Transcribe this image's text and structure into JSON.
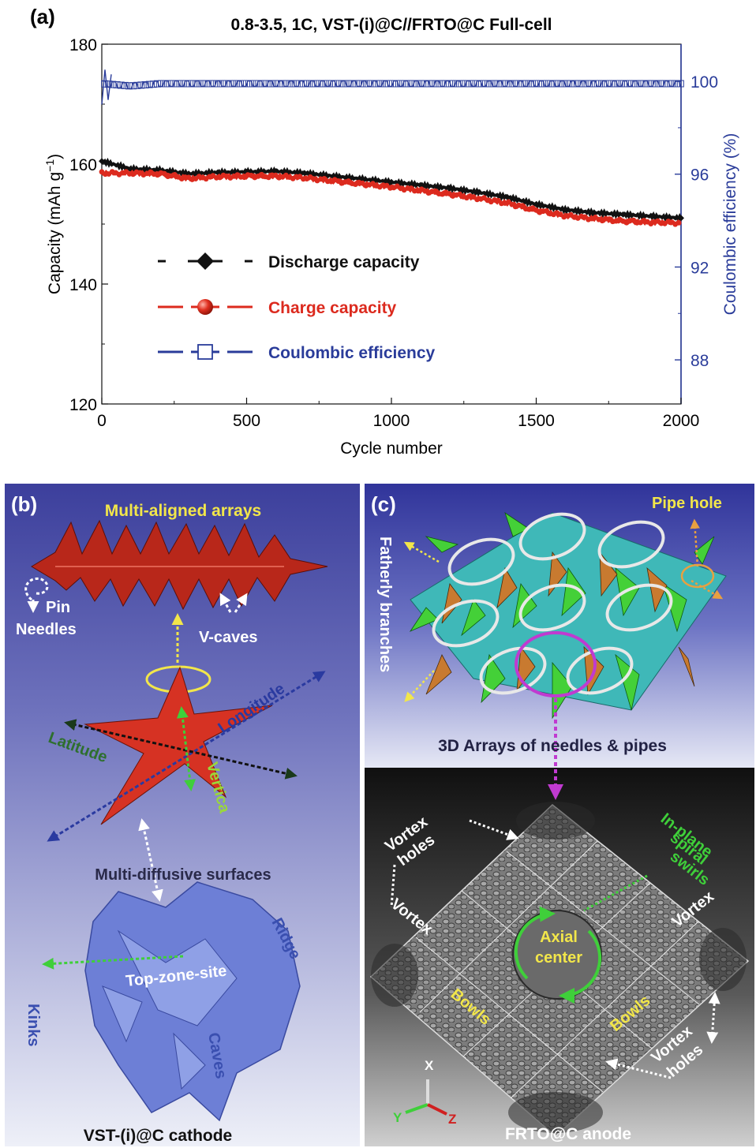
{
  "chart_data": {
    "type": "line",
    "title": "0.8-3.5, 1C, VST-(i)@C//FRTO@C Full-cell",
    "xlabel": "Cycle number",
    "ylabel_left": "Capacity (mAh g",
    "ylabel_left_sup": "−1",
    "ylabel_left_end": ")",
    "ylabel_right": "Coulombic efficiency (%)",
    "xlim": [
      0,
      2000
    ],
    "ylim_left": [
      120,
      180
    ],
    "ylim_right": [
      86.1,
      101.6
    ],
    "x_ticks": [
      "0",
      "500",
      "1000",
      "1500",
      "2000"
    ],
    "y_left_ticks": [
      "120",
      "140",
      "160",
      "180"
    ],
    "y_right_ticks": [
      "88",
      "92",
      "96",
      "100"
    ],
    "x": [
      0,
      100,
      200,
      300,
      400,
      500,
      600,
      700,
      800,
      900,
      1000,
      1100,
      1200,
      1300,
      1400,
      1500,
      1600,
      1700,
      1800,
      1900,
      2000
    ],
    "series": [
      {
        "name": "Discharge capacity",
        "axis": "left",
        "color": "#111111",
        "marker": "diamond",
        "values": [
          160.5,
          159.2,
          159.0,
          158.4,
          158.6,
          158.7,
          158.8,
          158.5,
          158.0,
          157.5,
          157.0,
          156.5,
          156.0,
          155.3,
          154.5,
          153.3,
          152.4,
          151.9,
          151.6,
          151.3,
          151.0
        ]
      },
      {
        "name": "Charge capacity",
        "axis": "left",
        "color": "#dc2a1e",
        "marker": "sphere",
        "values": [
          158.5,
          158.5,
          158.4,
          157.6,
          157.9,
          158.0,
          158.0,
          157.7,
          157.2,
          156.7,
          156.2,
          155.6,
          155.0,
          154.3,
          153.5,
          152.3,
          151.4,
          150.9,
          150.5,
          150.3,
          150.2
        ]
      },
      {
        "name": "Coulombic efficiency",
        "axis": "right",
        "color": "#2a3c9a",
        "marker": "open-square",
        "values": [
          99.9,
          99.8,
          99.9,
          99.9,
          99.9,
          99.9,
          99.9,
          99.9,
          99.9,
          99.9,
          99.9,
          99.9,
          99.9,
          99.9,
          99.9,
          99.9,
          99.9,
          99.9,
          99.9,
          99.9,
          99.9
        ]
      }
    ],
    "legend_position": "center-left"
  },
  "panel_a": {
    "label": "(a)"
  },
  "panel_b": {
    "label": "(b)",
    "title": "Multi-aligned arrays",
    "labels": {
      "pin": "Pin",
      "needles": "Needles",
      "vcaves": "V-caves",
      "latitude": "Latitude",
      "longitude": "Longitude",
      "vertical": "Vertica",
      "multi_diffusive": "Multi-diffusive surfaces",
      "ridge": "Ridge",
      "kinks": "Kinks",
      "top_zone": "Top-zone-site",
      "caves": "Caves",
      "caption": "VST-(i)@C cathode"
    }
  },
  "panel_c": {
    "label": "(c)",
    "labels": {
      "pipe_hole": "Pipe hole",
      "fatherly_branches": "Fatherly branches",
      "arrays": "3D Arrays of needles & pipes",
      "vortex_holes_1a": "Vortex",
      "vortex_holes_1b": "holes",
      "inplane_1": "In-plane",
      "inplane_2": "spiral",
      "inplane_3": "swirls",
      "vortex_left": "Vortex",
      "vortex_right": "Vortex",
      "axial_1": "Axial",
      "axial_2": "center",
      "bowls_left": "Bowls",
      "bowls_right": "Bowls",
      "vortex_holes_2a": "Vortex",
      "vortex_holes_2b": "holes",
      "axis_x": "X",
      "axis_y": "Y",
      "axis_z": "Z",
      "caption": "FRTO@C anode"
    }
  },
  "colors": {
    "discharge": "#111111",
    "charge": "#dc2a1e",
    "coulombic": "#2a3c9a",
    "label_yellow": "#f2e64a",
    "label_green": "#3fae3a",
    "label_blue": "#3a4fb0",
    "label_dark": "#2a2a4a"
  }
}
